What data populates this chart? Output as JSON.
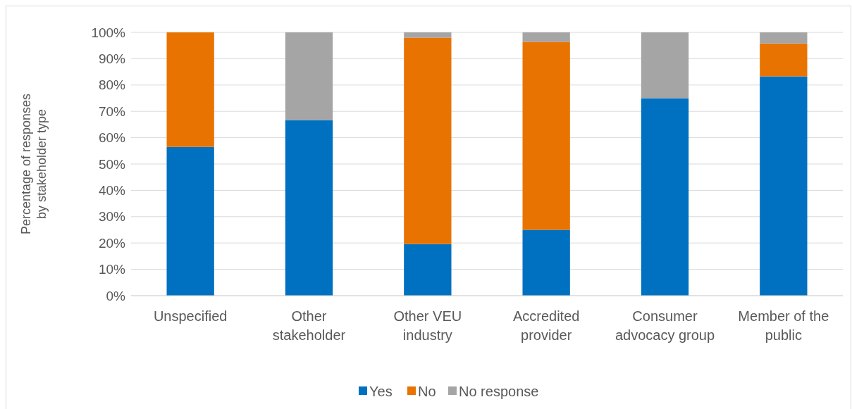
{
  "chart_data": {
    "type": "bar",
    "stacked": true,
    "ylabel": "Percentage of responses by stakeholder type",
    "categories": [
      "Unspecified",
      "Other stakeholder",
      "Other VEU industry",
      "Accredited provider",
      "Consumer advocacy group",
      "Member of the public"
    ],
    "series": [
      {
        "name": "Yes",
        "color": "#0070c0",
        "values": [
          56.5,
          66.7,
          19.6,
          25,
          75,
          83.3
        ]
      },
      {
        "name": "No",
        "color": "#e97300",
        "values": [
          43.5,
          0,
          78.4,
          71.4,
          0,
          12.5
        ]
      },
      {
        "name": "No response",
        "color": "#a5a5a5",
        "values": [
          0,
          33.3,
          2,
          3.6,
          25,
          4.2
        ]
      }
    ],
    "ylim": [
      0,
      100
    ],
    "yticks": [
      {
        "value": 0,
        "label": "0%"
      },
      {
        "value": 10,
        "label": "10%"
      },
      {
        "value": 20,
        "label": "20%"
      },
      {
        "value": 30,
        "label": "30%"
      },
      {
        "value": 40,
        "label": "40%"
      },
      {
        "value": 50,
        "label": "50%"
      },
      {
        "value": 60,
        "label": "60%"
      },
      {
        "value": 70,
        "label": "70%"
      },
      {
        "value": 80,
        "label": "80%"
      },
      {
        "value": 90,
        "label": "90%"
      },
      {
        "value": 100,
        "label": "100%"
      }
    ],
    "grid": "y",
    "legend": "bottom"
  }
}
